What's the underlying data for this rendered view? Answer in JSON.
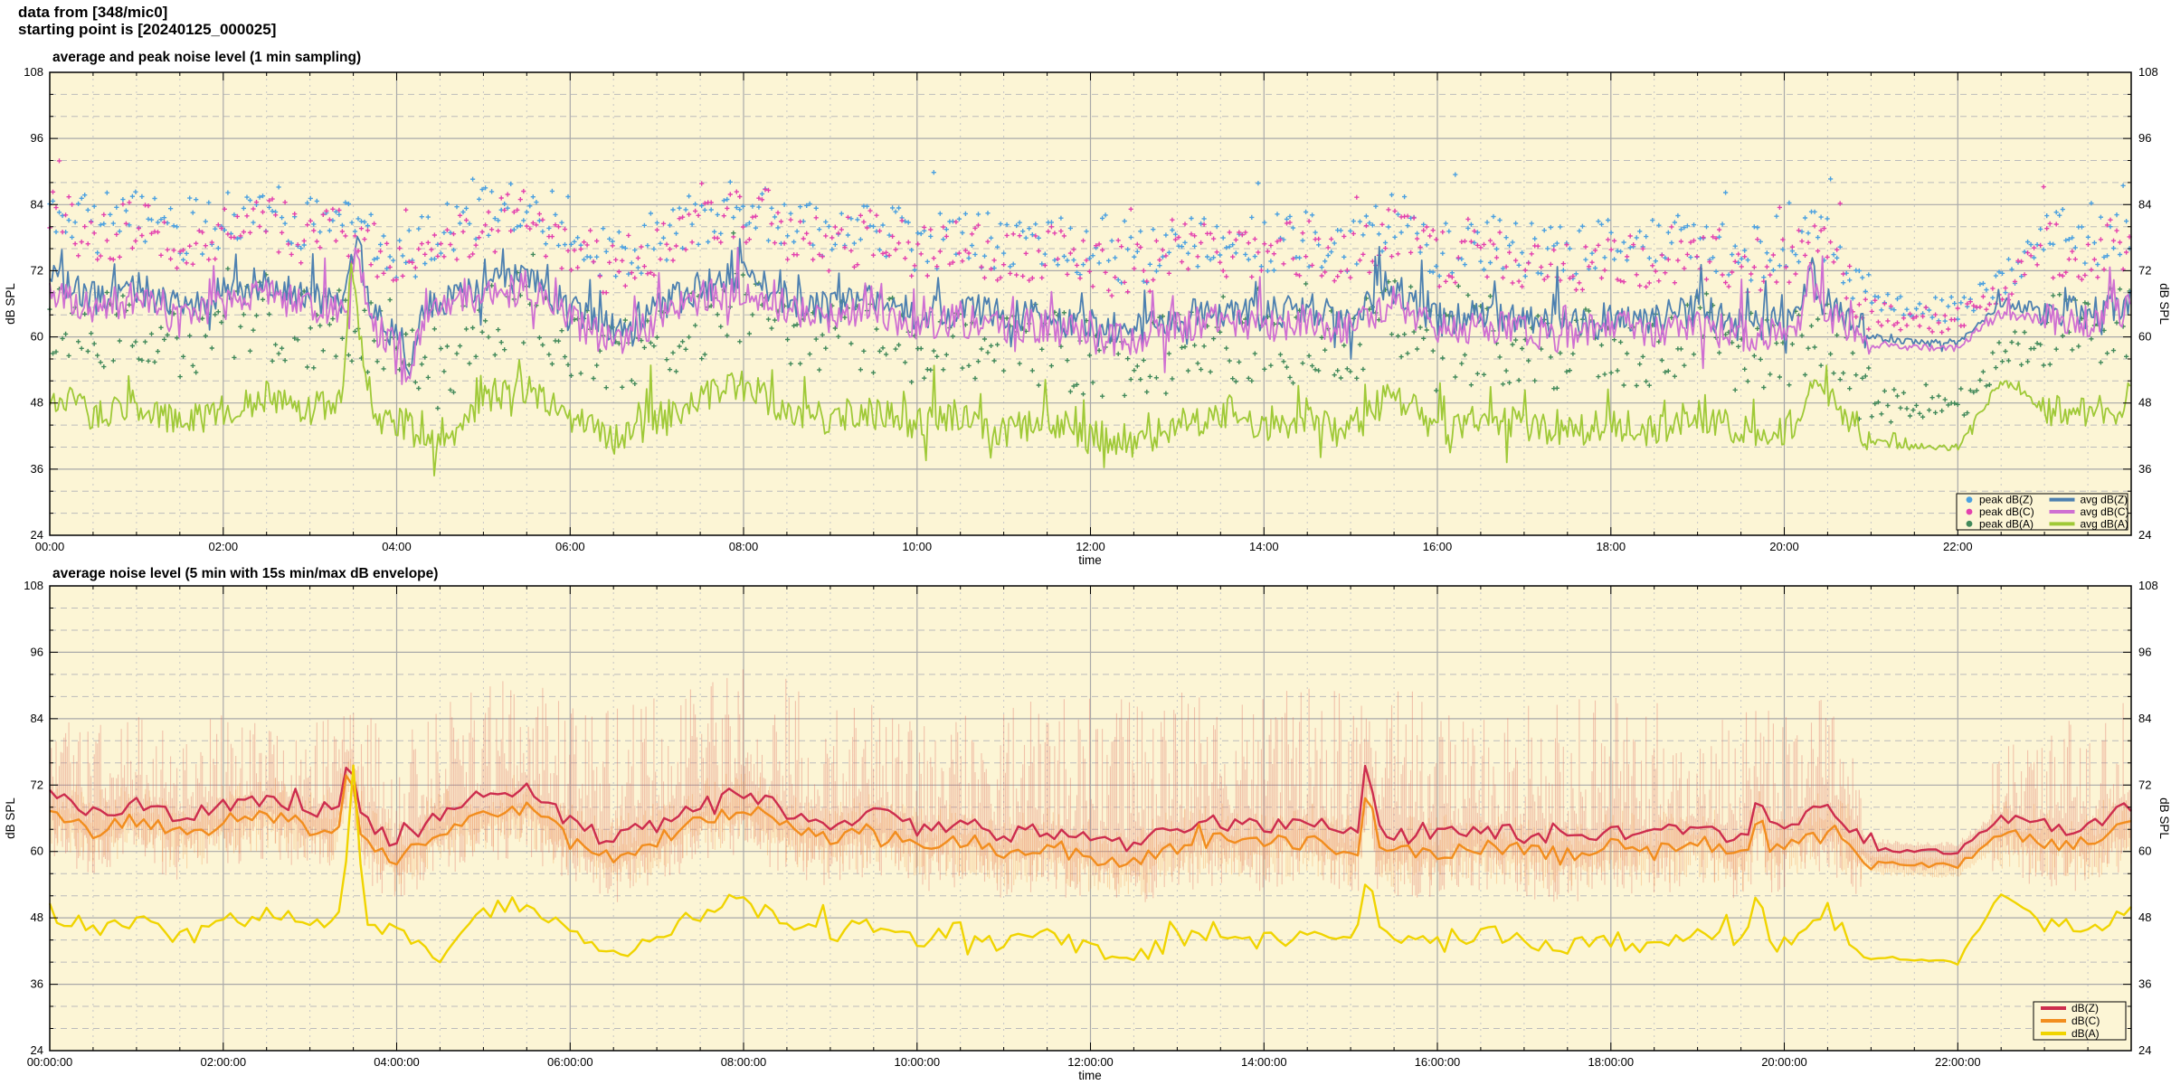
{
  "header": {
    "line1": "data from [348/mic0]",
    "line2": "starting point is [20240125_000025]"
  },
  "chart_data": [
    {
      "type": "line+scatter",
      "title": "average and peak noise level (1 min sampling)",
      "xlabel": "time",
      "ylabel": "dB SPL",
      "y2label": "dB SPL",
      "bg": "#fcf5d5",
      "x_hours": 24,
      "x_major_hours": 2,
      "x_minor_hours": 0.5,
      "y_min": 24,
      "y_max": 108,
      "y_major": 12,
      "y_minor": 4,
      "x_tick_labels": [
        "00:00",
        "02:00",
        "04:00",
        "06:00",
        "08:00",
        "10:00",
        "12:00",
        "14:00",
        "16:00",
        "18:00",
        "20:00",
        "22:00"
      ],
      "y_tick_labels": [
        "24",
        "36",
        "48",
        "60",
        "72",
        "84",
        "96",
        "108"
      ],
      "anchor_step_hours": 0.5,
      "series": [
        {
          "name": "peak dB(Z)",
          "kind": "scatter",
          "color": "#4aa0e0",
          "step_min": 2.2,
          "jitter": 5.2,
          "spike_p": 0.07,
          "spike_amp": 9,
          "seed": 11,
          "calm": [
            [
              21,
              22.35,
              0.45
            ],
            [
              22.35,
              22.95,
              0.6
            ]
          ],
          "anchors": [
            84,
            80,
            82,
            78,
            81,
            83,
            80,
            80,
            73,
            80,
            82,
            84,
            78,
            74,
            78,
            82,
            84,
            80,
            78,
            80,
            77,
            78,
            77,
            77,
            75,
            74,
            77,
            78,
            77,
            78,
            76,
            82,
            76,
            77,
            76,
            75,
            77,
            76,
            78,
            75,
            76,
            79,
            66,
            65,
            65,
            70,
            78,
            77,
            80
          ]
        },
        {
          "name": "peak dB(C)",
          "kind": "scatter",
          "color": "#e341ae",
          "step_min": 2.2,
          "jitter": 5.2,
          "spike_p": 0.07,
          "spike_amp": 9,
          "seed": 12,
          "calm": [
            [
              21,
              22.35,
              0.45
            ],
            [
              22.35,
              22.95,
              0.6
            ]
          ],
          "anchors": [
            82,
            78,
            80,
            76,
            79,
            81,
            78,
            78,
            71,
            78,
            80,
            82,
            76,
            72,
            76,
            80,
            82,
            78,
            76,
            78,
            75,
            76,
            75,
            75,
            73,
            72,
            75,
            76,
            75,
            76,
            74,
            80,
            74,
            75,
            74,
            73,
            75,
            74,
            76,
            73,
            74,
            77,
            64,
            63,
            63,
            68,
            76,
            75,
            78
          ]
        },
        {
          "name": "peak dB(A)",
          "kind": "scatter",
          "color": "#41895a",
          "step_min": 2.2,
          "jitter": 7.5,
          "spike_p": 0.07,
          "spike_amp": 9,
          "seed": 13,
          "calm": [
            [
              21,
              22.35,
              0.4
            ],
            [
              22.35,
              22.95,
              0.5
            ]
          ],
          "anchors": [
            64,
            60,
            62,
            58,
            61,
            63,
            61,
            62,
            59,
            54,
            63,
            65,
            59,
            55,
            59,
            63,
            65,
            61,
            59,
            61,
            58,
            60,
            57,
            59,
            56,
            55,
            58,
            60,
            58,
            59,
            57,
            64,
            57,
            59,
            58,
            57,
            58,
            57,
            60,
            57,
            57,
            63,
            48,
            47,
            47,
            56,
            61,
            60,
            63
          ]
        },
        {
          "name": "avg dB(Z)",
          "kind": "line",
          "color": "#4d80b0",
          "width": 1.8,
          "step_min": 1.4,
          "jitter": 3.1,
          "spike_p": 0.06,
          "spike_amp": 8,
          "seed": 21,
          "bumps": [
            [
              3.55,
              10,
              0.07
            ],
            [
              4.15,
              -9,
              0.05
            ],
            [
              20.3,
              9,
              0.05
            ]
          ],
          "calm": [
            [
              21,
              22.35,
              0.2
            ],
            [
              22.35,
              22.95,
              0.4
            ]
          ],
          "anchors": [
            71,
            67,
            69,
            65,
            68,
            70,
            67,
            67,
            60,
            67,
            69,
            71,
            65,
            61,
            65,
            69,
            71,
            67,
            65,
            67,
            64,
            65,
            64,
            64,
            62,
            61,
            64,
            65,
            64,
            65,
            63,
            69,
            63,
            64,
            63,
            62,
            64,
            63,
            65,
            62,
            63,
            66,
            60,
            59,
            59,
            66,
            65,
            64,
            67
          ]
        },
        {
          "name": "avg dB(C)",
          "kind": "line",
          "color": "#cf6fd2",
          "width": 1.8,
          "step_min": 1.4,
          "jitter": 3.1,
          "spike_p": 0.06,
          "spike_amp": 8,
          "seed": 22,
          "bumps": [
            [
              3.55,
              10,
              0.07
            ],
            [
              4.15,
              -9,
              0.05
            ],
            [
              20.3,
              9,
              0.05
            ]
          ],
          "calm": [
            [
              21,
              22.35,
              0.2
            ],
            [
              22.35,
              22.95,
              0.4
            ]
          ],
          "anchors": [
            69,
            65,
            67,
            63,
            66,
            68,
            65,
            65,
            58,
            65,
            67,
            69,
            63,
            59,
            63,
            67,
            69,
            65,
            63,
            65,
            62,
            63,
            62,
            62,
            60,
            59,
            62,
            63,
            62,
            63,
            61,
            67,
            61,
            62,
            61,
            60,
            62,
            61,
            63,
            60,
            61,
            64,
            58.5,
            58,
            58,
            64.5,
            63.5,
            62.5,
            65
          ]
        },
        {
          "name": "avg dB(A)",
          "kind": "line",
          "color": "#9fc937",
          "width": 1.8,
          "step_min": 1.4,
          "jitter": 3,
          "spike_p": 0.06,
          "spike_amp": 8,
          "seed": 23,
          "bumps": [
            [
              3.5,
              24,
              0.07
            ],
            [
              20.3,
              6,
              0.06
            ]
          ],
          "calm": [
            [
              21,
              22.35,
              0.22
            ],
            [
              22.35,
              22.95,
              0.3
            ]
          ],
          "anchors": [
            50,
            46,
            48,
            44,
            47,
            49,
            47,
            48,
            45,
            40,
            49,
            51,
            45,
            41,
            45,
            49,
            51,
            47,
            45,
            47,
            44,
            46,
            43,
            45,
            42,
            41,
            44,
            46,
            44,
            45,
            43,
            50,
            43,
            45,
            44,
            43,
            44,
            43,
            46,
            43,
            43,
            49,
            41,
            40,
            40,
            52,
            47,
            46,
            49
          ]
        }
      ],
      "legend": {
        "ncol": 2,
        "entries": [
          {
            "label": "peak dB(Z)",
            "color": "#4aa0e0",
            "swatch": "dot"
          },
          {
            "label": "peak dB(C)",
            "color": "#e341ae",
            "swatch": "dot"
          },
          {
            "label": "peak dB(A)",
            "color": "#41895a",
            "swatch": "dot"
          },
          {
            "label": "avg dB(Z)",
            "color": "#4d80b0",
            "swatch": "line"
          },
          {
            "label": "avg dB(C)",
            "color": "#cf6fd2",
            "swatch": "line"
          },
          {
            "label": "avg dB(A)",
            "color": "#9fc937",
            "swatch": "line"
          }
        ]
      }
    },
    {
      "type": "line+envelope",
      "title": "average noise level (5 min with 15s min/max dB envelope)",
      "xlabel": "time",
      "ylabel": "dB SPL",
      "y2label": "dB SPL",
      "bg": "#fcf5d5",
      "x_hours": 24,
      "x_major_hours": 2,
      "x_minor_hours": 0.5,
      "y_min": 24,
      "y_max": 108,
      "y_major": 12,
      "y_minor": 4,
      "x_tick_labels": [
        "00:00:00",
        "02:00:00",
        "04:00:00",
        "06:00:00",
        "08:00:00",
        "10:00:00",
        "12:00:00",
        "14:00:00",
        "16:00:00",
        "18:00:00",
        "20:00:00",
        "22:00:00"
      ],
      "y_tick_labels": [
        "24",
        "36",
        "48",
        "60",
        "72",
        "84",
        "96",
        "108"
      ],
      "anchor_step_hours": 0.5,
      "series": [
        {
          "name": "minmax envelope dB(Z)",
          "kind": "envelope",
          "color": "rgba(220,100,90,0.35)",
          "step_min": 1.1,
          "seed": 31,
          "down": [
            2.5,
            9
          ],
          "calm": [
            [
              20.9,
              22.4,
              0.12
            ]
          ],
          "bumps": [
            [
              3.45,
              9,
              0.06
            ],
            [
              15.2,
              14,
              0.05
            ],
            [
              19.7,
              7,
              0.06
            ]
          ],
          "anchors": [
            70,
            67,
            69,
            66,
            68,
            70,
            67,
            68,
            61,
            67,
            69,
            71,
            65,
            62,
            65,
            69,
            71,
            67,
            65,
            67,
            64,
            65,
            63,
            64,
            62,
            61,
            64,
            65,
            64,
            65,
            63,
            63,
            63,
            64,
            63,
            62,
            64,
            63,
            65,
            62,
            64,
            68,
            60.5,
            60,
            60,
            66,
            65,
            64,
            68
          ],
          "top_anchors": [
            84,
            85,
            86,
            84,
            85,
            84,
            86,
            88,
            80,
            88,
            90,
            92,
            88,
            86,
            88,
            91,
            93,
            92,
            88,
            87,
            84,
            85,
            86,
            88,
            88,
            89,
            89,
            88,
            88,
            90,
            92,
            92,
            85,
            86,
            87,
            88,
            89,
            88,
            84,
            85,
            87,
            88,
            70,
            67,
            68,
            79,
            85,
            86,
            88
          ]
        },
        {
          "name": "minmax envelope dB(C)",
          "kind": "envelope",
          "color": "rgba(242,150,70,0.32)",
          "step_min": 1.3,
          "seed": 32,
          "down": [
            1.5,
            5
          ],
          "top_offset": 7,
          "calm": [
            [
              20.9,
              22.4,
              0.15
            ]
          ],
          "bumps": [
            [
              3.45,
              9,
              0.06
            ],
            [
              15.2,
              13,
              0.05
            ],
            [
              19.7,
              6,
              0.06
            ]
          ],
          "anchors": [
            67,
            64,
            66,
            63,
            65,
            67,
            64,
            65,
            58,
            64,
            66,
            68,
            62,
            59,
            62,
            66,
            68,
            64,
            62,
            64,
            61,
            62,
            60,
            61,
            59,
            58,
            61,
            62,
            61,
            62,
            60,
            60,
            60,
            61,
            60,
            59,
            61,
            60,
            62,
            59,
            61,
            65,
            58,
            57.5,
            57.5,
            63,
            62,
            61,
            65
          ]
        },
        {
          "name": "dB(Z)",
          "kind": "line",
          "color": "#cd2d4e",
          "width": 2.4,
          "step_min": 5,
          "jitter": 1.6,
          "spike_p": 0.05,
          "spike_amp": 4,
          "seed": 41,
          "bumps": [
            [
              3.45,
              9,
              0.06
            ],
            [
              15.2,
              14,
              0.05
            ],
            [
              19.7,
              7,
              0.06
            ]
          ],
          "calm": [
            [
              21,
              22.35,
              0.3
            ],
            [
              22.35,
              22.95,
              0.5
            ]
          ],
          "anchors": [
            70,
            67,
            69,
            66,
            68,
            70,
            67,
            68,
            61,
            67,
            69,
            71,
            65,
            62,
            65,
            69,
            71,
            67,
            65,
            67,
            64,
            65,
            63,
            64,
            62,
            61,
            64,
            65,
            64,
            65,
            63,
            63,
            63,
            64,
            63,
            62,
            64,
            63,
            65,
            62,
            64,
            68,
            60.5,
            60,
            60,
            66,
            65,
            64,
            68
          ]
        },
        {
          "name": "dB(C)",
          "kind": "line",
          "color": "#f28d1e",
          "width": 2.4,
          "step_min": 5,
          "jitter": 1.6,
          "spike_p": 0.05,
          "spike_amp": 4,
          "seed": 42,
          "bumps": [
            [
              3.45,
              9,
              0.06
            ],
            [
              15.2,
              13,
              0.05
            ],
            [
              19.7,
              6,
              0.06
            ]
          ],
          "calm": [
            [
              21,
              22.35,
              0.3
            ],
            [
              22.35,
              22.95,
              0.5
            ]
          ],
          "anchors": [
            67,
            64,
            66,
            63,
            65,
            67,
            64,
            65,
            58,
            64,
            66,
            68,
            62,
            59,
            62,
            66,
            68,
            64,
            62,
            64,
            61,
            62,
            60,
            61,
            59,
            58,
            61,
            62,
            61,
            62,
            60,
            60,
            60,
            61,
            60,
            59,
            61,
            60,
            62,
            59,
            61,
            65,
            58,
            57.5,
            57.5,
            63,
            62,
            61,
            65
          ]
        },
        {
          "name": "dB(A)",
          "kind": "line",
          "color": "#f0d400",
          "width": 2.4,
          "step_min": 5,
          "jitter": 1.6,
          "spike_p": 0.05,
          "spike_amp": 4,
          "seed": 43,
          "bumps": [
            [
              3.5,
              26,
              0.06
            ],
            [
              15.2,
              11,
              0.06
            ],
            [
              19.7,
              8,
              0.07
            ]
          ],
          "calm": [
            [
              21,
              22.35,
              0.3
            ],
            [
              22.35,
              22.95,
              0.5
            ]
          ],
          "anchors": [
            49,
            46,
            48,
            44,
            47,
            49,
            47,
            48,
            45,
            40,
            49,
            51,
            45,
            41,
            45,
            49,
            51,
            47,
            45,
            47,
            44,
            46,
            43,
            45,
            42,
            41,
            44,
            46,
            44,
            45,
            43,
            45,
            43,
            45,
            44,
            43,
            44,
            43,
            46,
            43,
            43,
            48,
            41,
            40,
            40,
            52,
            47,
            46,
            49
          ]
        }
      ],
      "legend": {
        "ncol": 1,
        "entries": [
          {
            "label": "dB(Z)",
            "color": "#cd2d4e",
            "swatch": "line"
          },
          {
            "label": "dB(C)",
            "color": "#f28d1e",
            "swatch": "line"
          },
          {
            "label": "dB(A)",
            "color": "#f0d400",
            "swatch": "line"
          }
        ]
      }
    }
  ]
}
